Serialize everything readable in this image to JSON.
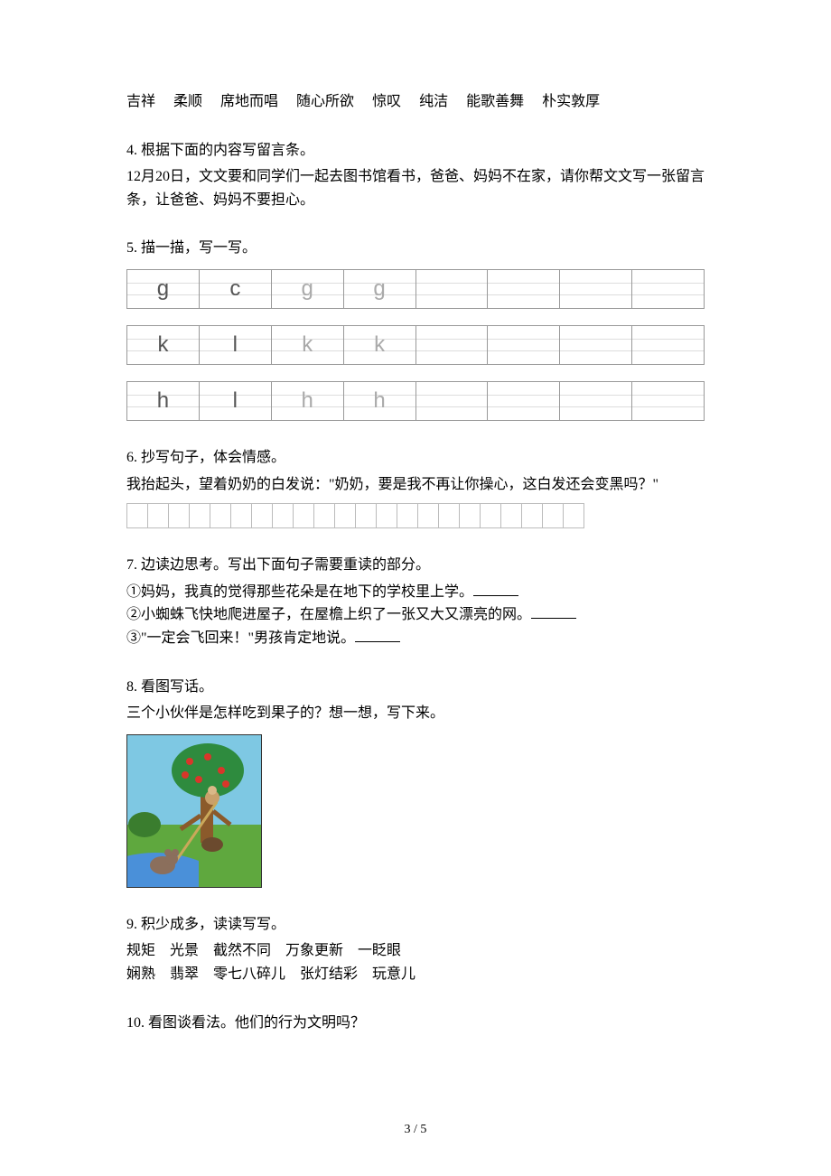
{
  "wordList": {
    "w1": "吉祥",
    "w2": "柔顺",
    "w3": "席地而唱",
    "w4": "随心所欲",
    "w5": "惊叹",
    "w6": "纯洁",
    "w7": "能歌善舞",
    "w8": "朴实敦厚"
  },
  "q4": {
    "title": "4. 根据下面的内容写留言条。",
    "body": "12月20日，文文要和同学们一起去图书馆看书，爸爸、妈妈不在家，请你帮文文写一张留言条，让爸爸、妈妈不要担心。"
  },
  "q5": {
    "title": "5. 描一描，写一写。",
    "rows": [
      {
        "cells": [
          "g",
          "c",
          "g",
          "g",
          "",
          "",
          "",
          ""
        ]
      },
      {
        "cells": [
          "k",
          "l",
          "k",
          "k",
          "",
          "",
          "",
          ""
        ]
      },
      {
        "cells": [
          "h",
          "l",
          "h",
          "h",
          "",
          "",
          "",
          ""
        ]
      }
    ]
  },
  "q6": {
    "title": "6. 抄写句子，体会情感。",
    "body": "我抬起头，望着奶奶的白发说：\"奶奶，要是我不再让你操心，这白发还会变黑吗？\"",
    "gridCells": 22
  },
  "q7": {
    "title": "7. 边读边思考。写出下面句子需要重读的部分。",
    "line1a": "①妈妈，我真的觉得那些花朵是在地下的学校里上学。",
    "line2a": "②小蜘蛛飞快地爬进屋子，在屋檐上织了一张又大又漂亮的网。",
    "line3a": "③\"一定会飞回来！\"男孩肯定地说。"
  },
  "q8": {
    "title": "8. 看图写话。",
    "body": "三个小伙伴是怎样吃到果子的？想一想，写下来。"
  },
  "q9": {
    "title": "9. 积少成多，读读写写。",
    "line1": "规矩　光景　截然不同　万象更新　一眨眼",
    "line2": "娴熟　翡翠　零七八碎儿　张灯结彩　玩意儿"
  },
  "q10": {
    "title": "10. 看图谈看法。他们的行为文明吗？"
  },
  "pageNumber": "3 / 5",
  "colors": {
    "sky": "#7ec8e3",
    "grass": "#5fa83e",
    "treeTrunk": "#8b5a2b",
    "treeCrown": "#2e8b3e",
    "apple": "#d9362a",
    "water": "#4a90d9",
    "mouse": "#8b6f5c",
    "bush": "#3a7d2e"
  }
}
